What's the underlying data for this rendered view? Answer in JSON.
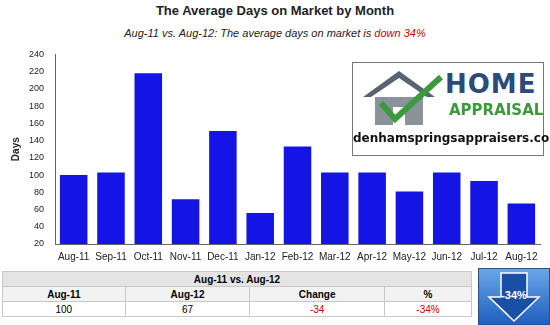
{
  "chart_data": {
    "type": "bar",
    "title": "The Average Days on Market by Month",
    "subtitle": [
      {
        "text": "Aug-11 vs. Aug-12: The average days on market is"
      },
      {
        "text": "down 34%",
        "color": "#cc0000"
      }
    ],
    "y_label": "Days",
    "categories": [
      "Aug-11",
      "Sep-11",
      "Oct-11",
      "Nov-11",
      "Dec-11",
      "Jan-12",
      "Feb-12",
      "Mar-12",
      "Apr-12",
      "May-12",
      "Jun-12",
      "Jul-12",
      "Aug-12"
    ],
    "values": [
      100,
      103,
      218,
      72,
      151,
      56,
      133,
      103,
      103,
      81,
      103,
      93,
      67
    ],
    "color": "#1414e6",
    "ylim": [
      20,
      240
    ],
    "yticks": [
      20,
      40,
      60,
      80,
      100,
      120,
      140,
      160,
      180,
      200,
      220,
      240
    ],
    "grid": false
  },
  "logo": {
    "title": "HOME",
    "subtitle": "APPRAISAL",
    "url": "denhamspringsappraisers.com"
  },
  "summary": {
    "title": "Aug-11 vs. Aug-12",
    "columns": [
      "Aug-11",
      "Aug-12",
      "Change",
      "%"
    ],
    "rows": [
      [
        100,
        67,
        -34,
        "-34%"
      ]
    ],
    "arrow_label": "-34%"
  }
}
